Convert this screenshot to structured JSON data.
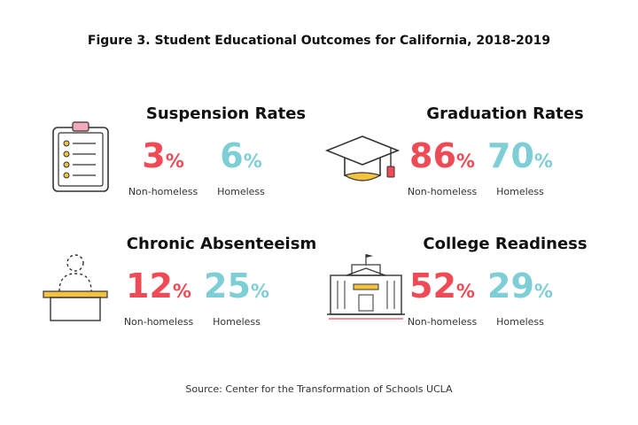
{
  "chart_data": {
    "type": "table",
    "title": "Figure 3. Student Educational Outcomes for California, 2018-2019",
    "source": "Source: Center for the Transformation of Schools UCLA",
    "unit": "%",
    "columns": [
      "Non-homeless",
      "Homeless"
    ],
    "metrics": [
      {
        "name": "Suspension Rates",
        "non_homeless": 3,
        "homeless": 6,
        "icon": "clipboard-icon"
      },
      {
        "name": "Graduation Rates",
        "non_homeless": 86,
        "homeless": 70,
        "icon": "graduation-cap-icon"
      },
      {
        "name": "Chronic Absenteeism",
        "non_homeless": 12,
        "homeless": 25,
        "icon": "empty-desk-icon"
      },
      {
        "name": "College Readiness",
        "non_homeless": 52,
        "homeless": 29,
        "icon": "university-building-icon"
      }
    ],
    "colors": {
      "non_homeless": "#ef4a55",
      "homeless": "#7dcfd5",
      "accent": "#f3c33f"
    }
  }
}
